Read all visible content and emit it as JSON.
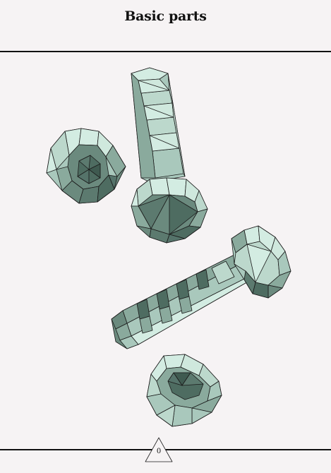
{
  "title": "Basic parts",
  "page_indicator": "0",
  "palette": {
    "light": "#d3ece2",
    "mid": "#a9c8bc",
    "midDark": "#8aaa9d",
    "dark": "#6b8a7e",
    "darker": "#4e6c61",
    "edge": "#1a1a1a"
  },
  "parts": [
    "nut-left",
    "bolt-vertical",
    "bolt-horizontal",
    "nut-bottom"
  ]
}
